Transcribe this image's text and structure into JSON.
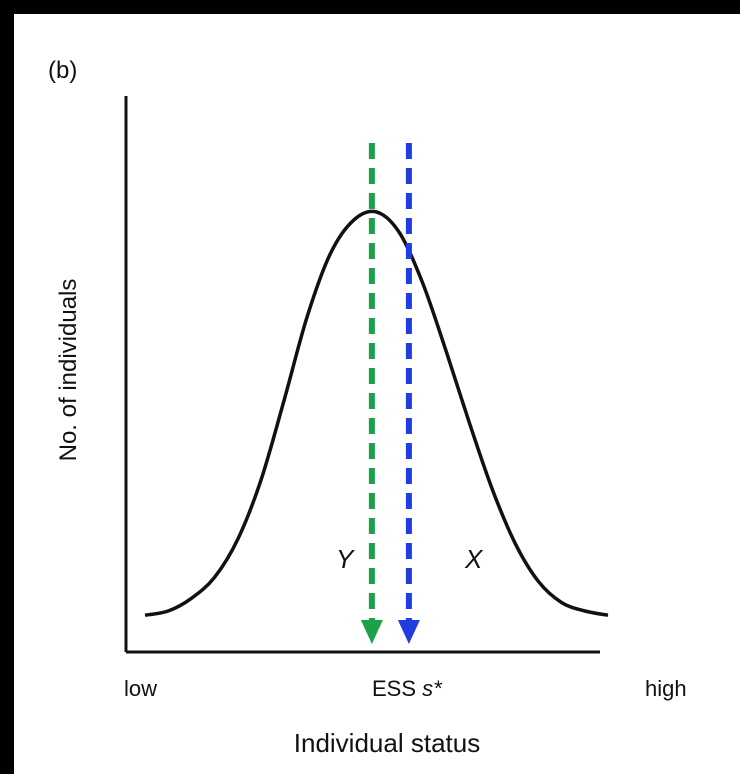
{
  "chart_data": {
    "type": "line",
    "panel_label": "(b)",
    "title": "",
    "xlabel": "Individual status",
    "ylabel": "No. of individuals",
    "x_tick_labels": [
      "low",
      "high"
    ],
    "ess_label_prefix": "ESS ",
    "ess_label_symbol": "s*",
    "region_labels": {
      "left": "Y",
      "right": "X"
    },
    "xlim": [
      0,
      1
    ],
    "ylim": [
      0,
      1
    ],
    "series": [
      {
        "curve": "normal-like distribution",
        "x": [
          0.0,
          0.05,
          0.1,
          0.15,
          0.2,
          0.25,
          0.3,
          0.35,
          0.4,
          0.45,
          0.5,
          0.55,
          0.6,
          0.65,
          0.7,
          0.75,
          0.8,
          0.85,
          0.9,
          0.95,
          1.0
        ],
        "y": [
          0.04,
          0.05,
          0.08,
          0.13,
          0.22,
          0.36,
          0.55,
          0.75,
          0.9,
          0.98,
          1.0,
          0.95,
          0.83,
          0.67,
          0.5,
          0.34,
          0.21,
          0.12,
          0.07,
          0.05,
          0.04
        ]
      }
    ],
    "markers": [
      {
        "x": 0.49,
        "color": "#1aa14a",
        "style": "dashed-arrow"
      },
      {
        "x": 0.57,
        "color": "#1f3de0",
        "style": "dashed-arrow"
      }
    ],
    "grid": false,
    "legend": "none"
  }
}
